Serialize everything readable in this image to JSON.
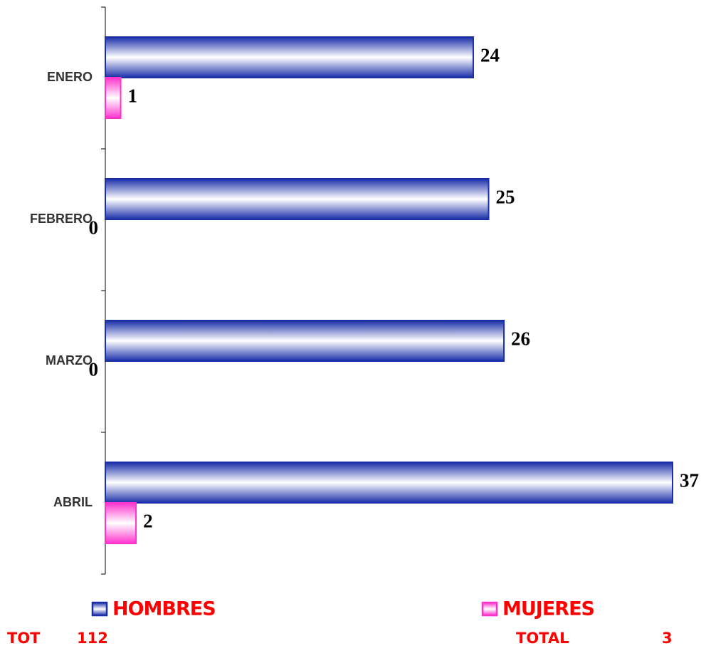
{
  "chart_data": {
    "type": "barh",
    "categories": [
      "ENERO",
      "FEBRERO",
      "MARZO",
      "ABRIL"
    ],
    "series": [
      {
        "name": "HOMBRES",
        "color": "#1a2ea8",
        "values": [
          24,
          25,
          26,
          37
        ]
      },
      {
        "name": "MUJERES",
        "color": "#ff33cc",
        "values": [
          1,
          0,
          0,
          2
        ]
      }
    ],
    "xlim": [
      0,
      37
    ],
    "legend_color": "#ff0000",
    "annotations": [
      "TOT",
      "112",
      "TOTAL",
      "3"
    ]
  }
}
